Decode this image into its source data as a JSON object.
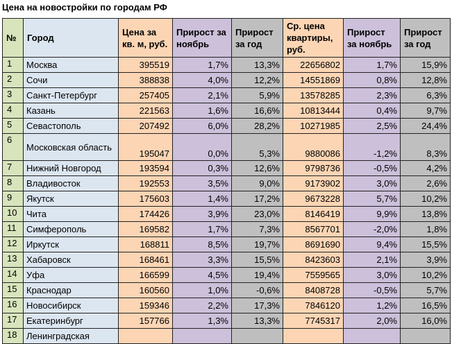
{
  "title": "Цена на новостройки по городам РФ",
  "columns": [
    "№",
    "Город",
    "Цена за кв. м, руб.",
    "Прирост за ноябрь",
    "Прирост за год",
    "Ср. цена квартиры, руб.",
    "Прирост за ноябрь",
    "Прирост за год"
  ],
  "rows": [
    [
      "1",
      "Москва",
      "395519",
      "1,7%",
      "13,3%",
      "22656802",
      "1,7%",
      "15,9%"
    ],
    [
      "2",
      "Сочи",
      "388838",
      "4,0%",
      "12,2%",
      "14551869",
      "0,8%",
      "12,8%"
    ],
    [
      "3",
      "Санкт-Петербург",
      "257405",
      "2,1%",
      "5,9%",
      "13578285",
      "2,3%",
      "6,3%"
    ],
    [
      "4",
      "Казань",
      "221563",
      "1,6%",
      "16,6%",
      "10813444",
      "0,4%",
      "9,7%"
    ],
    [
      "5",
      "Севастополь",
      "207492",
      "6,0%",
      "28,2%",
      "10271985",
      "2,5%",
      "24,4%"
    ],
    [
      "6",
      "Московская область",
      "195047",
      "0,0%",
      "5,3%",
      "9880086",
      "-1,2%",
      "8,3%"
    ],
    [
      "7",
      "Нижний Новгород",
      "193594",
      "0,3%",
      "12,6%",
      "9798736",
      "-0,5%",
      "4,2%"
    ],
    [
      "8",
      "Владивосток",
      "192553",
      "3,5%",
      "9,0%",
      "9173902",
      "3,0%",
      "2,6%"
    ],
    [
      "9",
      "Якутск",
      "175603",
      "1,4%",
      "17,2%",
      "9673228",
      "5,7%",
      "10,2%"
    ],
    [
      "10",
      "Чита",
      "174426",
      "3,9%",
      "23,0%",
      "8146419",
      "9,9%",
      "13,8%"
    ],
    [
      "11",
      "Симферополь",
      "169582",
      "1,7%",
      "7,3%",
      "8567701",
      "-2,0%",
      "1,8%"
    ],
    [
      "12",
      "Иркутск",
      "168811",
      "8,5%",
      "19,7%",
      "8691690",
      "9,4%",
      "15,5%"
    ],
    [
      "13",
      "Хабаровск",
      "168461",
      "3,3%",
      "15,5%",
      "8423603",
      "2,1%",
      "3,9%"
    ],
    [
      "14",
      "Уфа",
      "166599",
      "4,5%",
      "19,4%",
      "7559565",
      "3,0%",
      "10,2%"
    ],
    [
      "15",
      "Краснодар",
      "160560",
      "1,0%",
      "-0,6%",
      "8408728",
      "-0,5%",
      "5,7%"
    ],
    [
      "16",
      "Новосибирск",
      "159346",
      "2,2%",
      "17,3%",
      "7846120",
      "1,2%",
      "16,5%"
    ],
    [
      "17",
      "Екатеринбург",
      "157766",
      "1,3%",
      "13,3%",
      "7745317",
      "2,0%",
      "16,0%"
    ],
    [
      "18",
      "Ленинградская",
      "",
      "",
      "",
      "",
      "",
      ""
    ]
  ],
  "colors": {
    "index": "#d8e4bc",
    "city": "#dce6f1",
    "price": "#fcd5b4",
    "growth_month": "#ccc0da",
    "growth_year": "#bfbfbf"
  }
}
